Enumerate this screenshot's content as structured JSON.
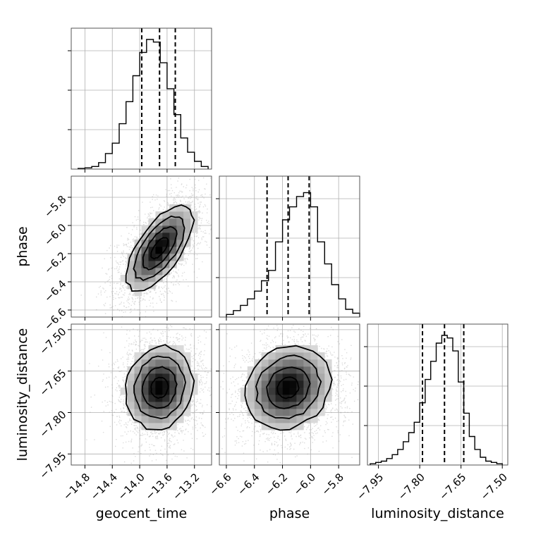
{
  "chart_data": {
    "type": "corner",
    "parameters": [
      "geocent_time",
      "phase",
      "luminosity_distance"
    ],
    "axis_labels": {
      "x": [
        "geocent_time",
        "phase",
        "luminosity_distance"
      ],
      "y": [
        "",
        "phase",
        "luminosity_distance"
      ]
    },
    "ranges": {
      "geocent_time": [
        -15.0,
        -12.95
      ],
      "phase": [
        -6.65,
        -5.65
      ],
      "luminosity_distance": [
        -7.99,
        -7.48
      ]
    },
    "ticks": {
      "geocent_time": [
        -14.8,
        -14.4,
        -14.0,
        -13.6,
        -13.2
      ],
      "phase": [
        -6.6,
        -6.4,
        -6.2,
        -6.0,
        -5.8
      ],
      "luminosity_distance": [
        -7.95,
        -7.8,
        -7.65,
        -7.5
      ]
    },
    "tick_labels": {
      "geocent_time": [
        "−14.8",
        "−14.4",
        "−14.0",
        "−13.6",
        "−13.2"
      ],
      "phase": [
        "−6.6",
        "−6.4",
        "−6.2",
        "−6.0",
        "−5.8"
      ],
      "luminosity_distance": [
        "−7.95",
        "−7.80",
        "−7.65",
        "−7.50"
      ]
    },
    "quantiles": {
      "geocent_time": [
        -13.97,
        -13.71,
        -13.48
      ],
      "phase": [
        -6.31,
        -6.16,
        -6.01
      ],
      "luminosity_distance": [
        -7.79,
        -7.71,
        -7.64
      ]
    },
    "histograms": {
      "geocent_time": {
        "edges": [
          -14.9,
          -14.8,
          -14.7,
          -14.6,
          -14.5,
          -14.4,
          -14.3,
          -14.2,
          -14.1,
          -14.0,
          -13.9,
          -13.8,
          -13.7,
          -13.6,
          -13.5,
          -13.4,
          -13.3,
          -13.2,
          -13.1,
          -13.0
        ],
        "counts": [
          0.005,
          0.01,
          0.02,
          0.05,
          0.12,
          0.2,
          0.35,
          0.52,
          0.72,
          0.9,
          1.0,
          0.98,
          0.82,
          0.62,
          0.42,
          0.24,
          0.13,
          0.06,
          0.02
        ]
      },
      "phase": {
        "edges": [
          -6.6,
          -6.55,
          -6.5,
          -6.45,
          -6.4,
          -6.35,
          -6.3,
          -6.25,
          -6.2,
          -6.15,
          -6.1,
          -6.05,
          -6.0,
          -5.95,
          -5.9,
          -5.85,
          -5.8,
          -5.75,
          -5.7,
          -5.65
        ],
        "counts": [
          0.02,
          0.05,
          0.09,
          0.14,
          0.2,
          0.28,
          0.36,
          0.58,
          0.75,
          0.85,
          0.93,
          0.96,
          0.85,
          0.58,
          0.41,
          0.25,
          0.14,
          0.06,
          0.03
        ]
      },
      "luminosity_distance": {
        "edges": [
          -7.98,
          -7.96,
          -7.94,
          -7.92,
          -7.9,
          -7.88,
          -7.86,
          -7.84,
          -7.82,
          -7.8,
          -7.78,
          -7.76,
          -7.74,
          -7.72,
          -7.7,
          -7.68,
          -7.66,
          -7.64,
          -7.62,
          -7.6,
          -7.58,
          -7.56,
          -7.54,
          -7.52,
          -7.5
        ],
        "counts": [
          0.01,
          0.02,
          0.03,
          0.05,
          0.08,
          0.12,
          0.18,
          0.25,
          0.33,
          0.48,
          0.66,
          0.8,
          0.94,
          1.0,
          0.98,
          0.88,
          0.64,
          0.4,
          0.22,
          0.12,
          0.06,
          0.03,
          0.02,
          0.01
        ]
      }
    },
    "correlations": {
      "phase|geocent_time": 0.65,
      "luminosity_distance|geocent_time": 0.1,
      "luminosity_distance|phase": 0.15
    },
    "contour_levels_sigma": [
      0.5,
      1.0,
      1.5,
      2.0
    ],
    "grid": true,
    "colors": {
      "line": "#000000",
      "grid": "#b0b0b0",
      "points": "#9a9a9a"
    }
  }
}
